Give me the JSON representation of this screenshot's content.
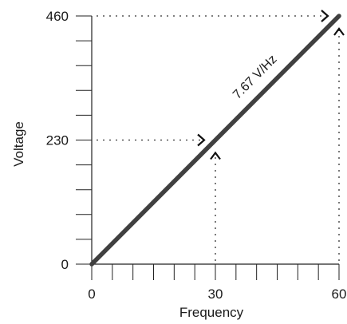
{
  "chart_data": {
    "type": "line",
    "title": "",
    "xlabel": "Frequency",
    "ylabel": "Voltage",
    "xlim": [
      0,
      60
    ],
    "ylim": [
      0,
      460
    ],
    "x_ticks": [
      0,
      30,
      60
    ],
    "x_tick_labels": [
      "0",
      "30",
      "60"
    ],
    "y_ticks": [
      0,
      230,
      460
    ],
    "y_tick_labels": [
      "0",
      "230",
      "460"
    ],
    "x_minor_ticks": [
      0,
      5,
      10,
      15,
      20,
      25,
      30,
      35,
      40,
      45,
      50,
      55,
      60
    ],
    "y_minor_ticks": [
      0,
      46,
      92,
      138,
      184,
      230,
      276,
      322,
      368,
      414,
      460
    ],
    "series": [
      {
        "x": [
          0,
          60
        ],
        "y": [
          0,
          460
        ]
      }
    ],
    "annotation": "7.67 V/Hz",
    "reference_points": [
      {
        "x": 30,
        "y": 230
      },
      {
        "x": 60,
        "y": 460
      }
    ],
    "grid": false,
    "colors": {
      "line": "#404040",
      "axis": "#222222",
      "guide": "#333333"
    }
  }
}
